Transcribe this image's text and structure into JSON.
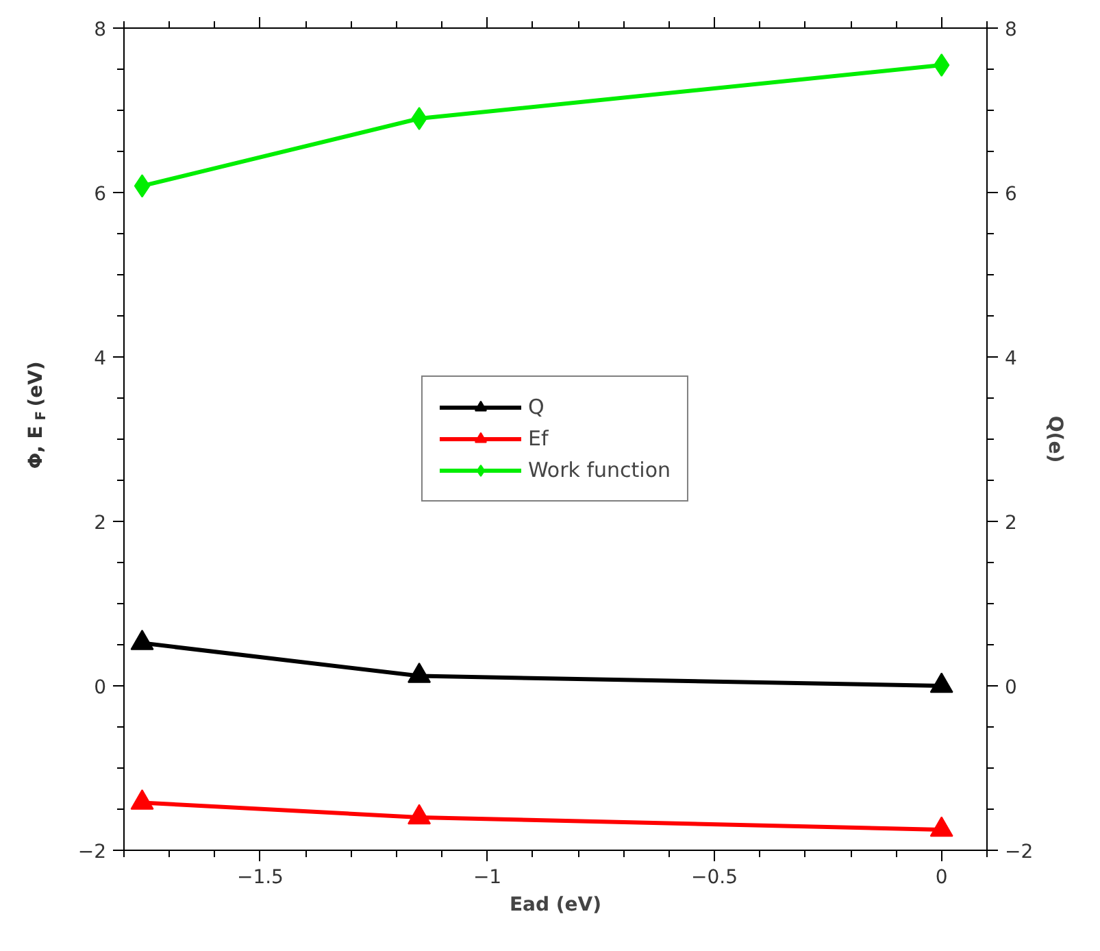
{
  "chart_data": {
    "type": "line",
    "xlabel": "Ead (eV)",
    "ylabel": "Φ, E$_{F}$ (eV)",
    "y2label": "Q(e)",
    "x": [
      -1.76,
      -1.15,
      0
    ],
    "xlim": [
      -1.8,
      0.1
    ],
    "xticks": [
      {
        "value": -1.5,
        "label": "−1.5"
      },
      {
        "value": -1,
        "label": "−1"
      },
      {
        "value": -0.5,
        "label": "−0.5"
      },
      0
    ],
    "ylim": [
      -2,
      8
    ],
    "yticks": [
      {
        "value": -2,
        "label": "−2"
      },
      0,
      2,
      4,
      6,
      8
    ],
    "y2lim": [
      -2,
      8
    ],
    "y2ticks": [
      {
        "value": -2,
        "label": "−2"
      },
      0,
      2,
      4,
      6,
      8
    ],
    "grid": false,
    "legend": "center",
    "series": [
      {
        "name": "Q",
        "color": "#000000",
        "values": [
          0.52,
          0.12,
          0
        ],
        "marker": "triangle"
      },
      {
        "name": "Ef",
        "color": "#ff0000",
        "values": [
          -1.42,
          -1.6,
          -1.75
        ],
        "marker": "triangle"
      },
      {
        "name": "Work function",
        "color": "#00ee00",
        "values": [
          6.08,
          6.9,
          7.55
        ],
        "marker": "diamond"
      }
    ]
  }
}
